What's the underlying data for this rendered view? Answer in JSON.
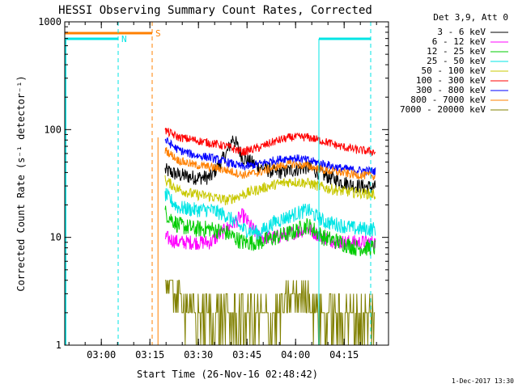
{
  "chart_data": {
    "type": "line",
    "title": "HESSI Observing Summary Count Rates, Corrected",
    "xlabel": "Start Time (26-Nov-16 02:48:42)",
    "ylabel": "Corrected Count Rate (s⁻¹ detector⁻¹)",
    "yscale": "log",
    "ylim": [
      1,
      1000
    ],
    "xlim_minutes": [
      0,
      100
    ],
    "x_ticks": [
      {
        "label": "03:00",
        "minute": 11.3
      },
      {
        "label": "03:15",
        "minute": 26.3
      },
      {
        "label": "03:30",
        "minute": 41.3
      },
      {
        "label": "03:45",
        "minute": 56.3
      },
      {
        "label": "04:00",
        "minute": 71.3
      },
      {
        "label": "04:15",
        "minute": 86.3
      }
    ],
    "y_ticks": [
      {
        "label": "1",
        "value": 1
      },
      {
        "label": "10",
        "value": 10
      },
      {
        "label": "100",
        "value": 100
      },
      {
        "label": "1000",
        "value": 1000
      }
    ],
    "legend_title": "Det 3,9, Att 0",
    "legend_position": "right",
    "series": [
      {
        "name": "3 - 6 keV",
        "color": "#000000",
        "x": [
          31,
          35,
          40,
          45,
          50,
          52,
          55,
          60,
          65,
          70,
          75,
          80,
          85,
          90,
          96
        ],
        "y": [
          42,
          38,
          36,
          36,
          60,
          85,
          55,
          45,
          40,
          42,
          45,
          38,
          33,
          30,
          29
        ]
      },
      {
        "name": "6 - 12 keV",
        "color": "#ff00ff",
        "x": [
          31,
          35,
          40,
          45,
          55,
          60,
          65,
          70,
          75,
          80,
          85,
          90,
          96
        ],
        "y": [
          10,
          9,
          9,
          9,
          16,
          10,
          10,
          11,
          12,
          10,
          9,
          9,
          9
        ]
      },
      {
        "name": "12 - 25 keV",
        "color": "#00cc00",
        "x": [
          31,
          35,
          40,
          45,
          50,
          55,
          60,
          65,
          70,
          75,
          80,
          85,
          90,
          96
        ],
        "y": [
          17,
          13,
          12,
          12,
          11,
          9,
          9,
          10,
          11,
          13,
          10,
          9,
          8,
          8
        ]
      },
      {
        "name": "25 - 50 keV",
        "color": "#00e5e5",
        "x": [
          31,
          35,
          40,
          45,
          50,
          55,
          60,
          65,
          70,
          75,
          80,
          85,
          90,
          96
        ],
        "y": [
          25,
          19,
          18,
          18,
          16,
          12,
          11,
          14,
          16,
          18,
          14,
          13,
          12,
          12
        ]
      },
      {
        "name": "50 - 100 keV",
        "color": "#c8c800",
        "x": [
          31,
          35,
          40,
          45,
          50,
          55,
          60,
          65,
          70,
          75,
          80,
          85,
          90,
          96
        ],
        "y": [
          34,
          28,
          25,
          24,
          22,
          25,
          28,
          31,
          33,
          32,
          29,
          27,
          26,
          25
        ]
      },
      {
        "name": "100 - 300 keV",
        "color": "#ff0000",
        "x": [
          31,
          35,
          40,
          45,
          50,
          55,
          60,
          65,
          70,
          75,
          80,
          85,
          90,
          96
        ],
        "y": [
          98,
          85,
          80,
          75,
          70,
          62,
          68,
          78,
          85,
          85,
          78,
          70,
          65,
          62
        ]
      },
      {
        "name": "300 - 800 keV",
        "color": "#0000ff",
        "x": [
          31,
          35,
          40,
          45,
          50,
          55,
          60,
          65,
          70,
          75,
          80,
          85,
          90,
          96
        ],
        "y": [
          80,
          65,
          58,
          55,
          50,
          45,
          48,
          52,
          55,
          52,
          48,
          44,
          42,
          41
        ]
      },
      {
        "name": "800 - 7000 keV",
        "color": "#ff8000",
        "x": [
          31,
          35,
          40,
          45,
          50,
          55,
          60,
          65,
          70,
          75,
          80,
          85,
          90,
          96
        ],
        "y": [
          65,
          52,
          47,
          45,
          42,
          38,
          40,
          45,
          48,
          46,
          42,
          40,
          38,
          37
        ]
      },
      {
        "name": "7000 - 20000 keV",
        "color": "#808000",
        "x": [
          31,
          35,
          40,
          45,
          50,
          55,
          60,
          65,
          70,
          75,
          80,
          85,
          90,
          96
        ],
        "y": [
          4,
          3,
          2,
          2,
          2,
          2,
          2,
          2,
          3,
          3,
          2,
          2,
          2,
          2
        ]
      }
    ],
    "annotations": [
      {
        "text": "N",
        "color": "#00e5e5"
      },
      {
        "text": "S",
        "color": "#ff8000"
      }
    ],
    "timestamp": "1-Dec-2017 13:30"
  }
}
